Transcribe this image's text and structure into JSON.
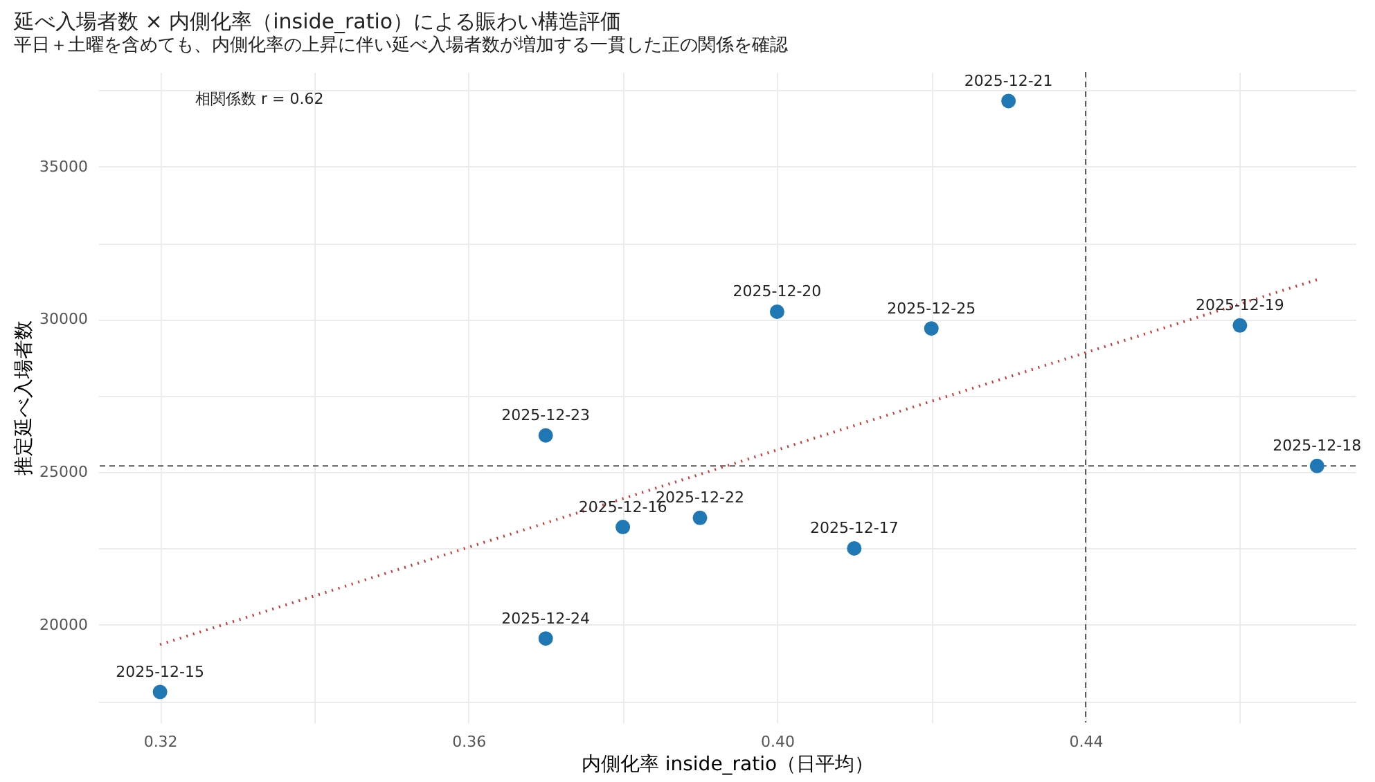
{
  "chart_data": {
    "type": "scatter",
    "title": "延べ入場者数 × 内側化率（inside_ratio）による賑わい構造評価",
    "subtitle": "平日＋土曜を含めても、内側化率の上昇に伴い延べ入場者数が増加する一貫した正の関係を確認",
    "xlabel": "内側化率 inside_ratio（日平均）",
    "ylabel": "推定延べ入場者数",
    "x": [
      0.32,
      0.38,
      0.41,
      0.47,
      0.46,
      0.4,
      0.43,
      0.39,
      0.37,
      0.37,
      0.42
    ],
    "series": [
      {
        "color": "#1f77b4",
        "marker": "circle",
        "values": [
          17800,
          23200,
          22500,
          25200,
          29800,
          30250,
          37150,
          23500,
          26200,
          19550,
          29700
        ]
      },
      {
        "type": "line",
        "color": "#cc3333",
        "line_style": "dotted",
        "x": [
          0.32,
          0.47
        ],
        "values": [
          19350,
          31300
        ]
      }
    ],
    "annotations": [
      "相関係数 r = 0.62",
      {
        "text": "2025-12-15",
        "x": 0.32,
        "y": 17800
      },
      {
        "text": "2025-12-16",
        "x": 0.38,
        "y": 23200
      },
      {
        "text": "2025-12-17",
        "x": 0.41,
        "y": 22500
      },
      {
        "text": "2025-12-18",
        "x": 0.47,
        "y": 25200
      },
      {
        "text": "2025-12-19",
        "x": 0.46,
        "y": 29800
      },
      {
        "text": "2025-12-20",
        "x": 0.4,
        "y": 30250
      },
      {
        "text": "2025-12-21",
        "x": 0.43,
        "y": 37150
      },
      {
        "text": "2025-12-22",
        "x": 0.39,
        "y": 23500
      },
      {
        "text": "2025-12-23",
        "x": 0.37,
        "y": 26200
      },
      {
        "text": "2025-12-24",
        "x": 0.37,
        "y": 19550
      },
      {
        "text": "2025-12-25",
        "x": 0.42,
        "y": 29700
      }
    ],
    "ref_lines": [
      {
        "axis": "x",
        "value": 0.44,
        "color": "#555555",
        "line_style": "dashed"
      },
      {
        "axis": "y",
        "value": 25200,
        "color": "#555555",
        "line_style": "dashed"
      }
    ],
    "xlim": [
      0.312,
      0.475
    ],
    "ylim": [
      16800,
      38100
    ],
    "xticks": [
      0.32,
      {
        "value": 0.34,
        "label": null
      },
      0.36,
      {
        "value": 0.38,
        "label": null
      },
      {
        "value": 0.4,
        "label": "0.40"
      },
      {
        "value": 0.42,
        "label": null
      },
      0.44,
      {
        "value": 0.46,
        "label": null
      }
    ],
    "yticks": [
      {
        "value": 17500,
        "label": null
      },
      20000,
      {
        "value": 22500,
        "label": null
      },
      25000,
      {
        "value": 27500,
        "label": null
      },
      30000,
      {
        "value": 32500,
        "label": null
      },
      35000,
      {
        "value": 37500,
        "label": null
      }
    ],
    "grid": true
  }
}
